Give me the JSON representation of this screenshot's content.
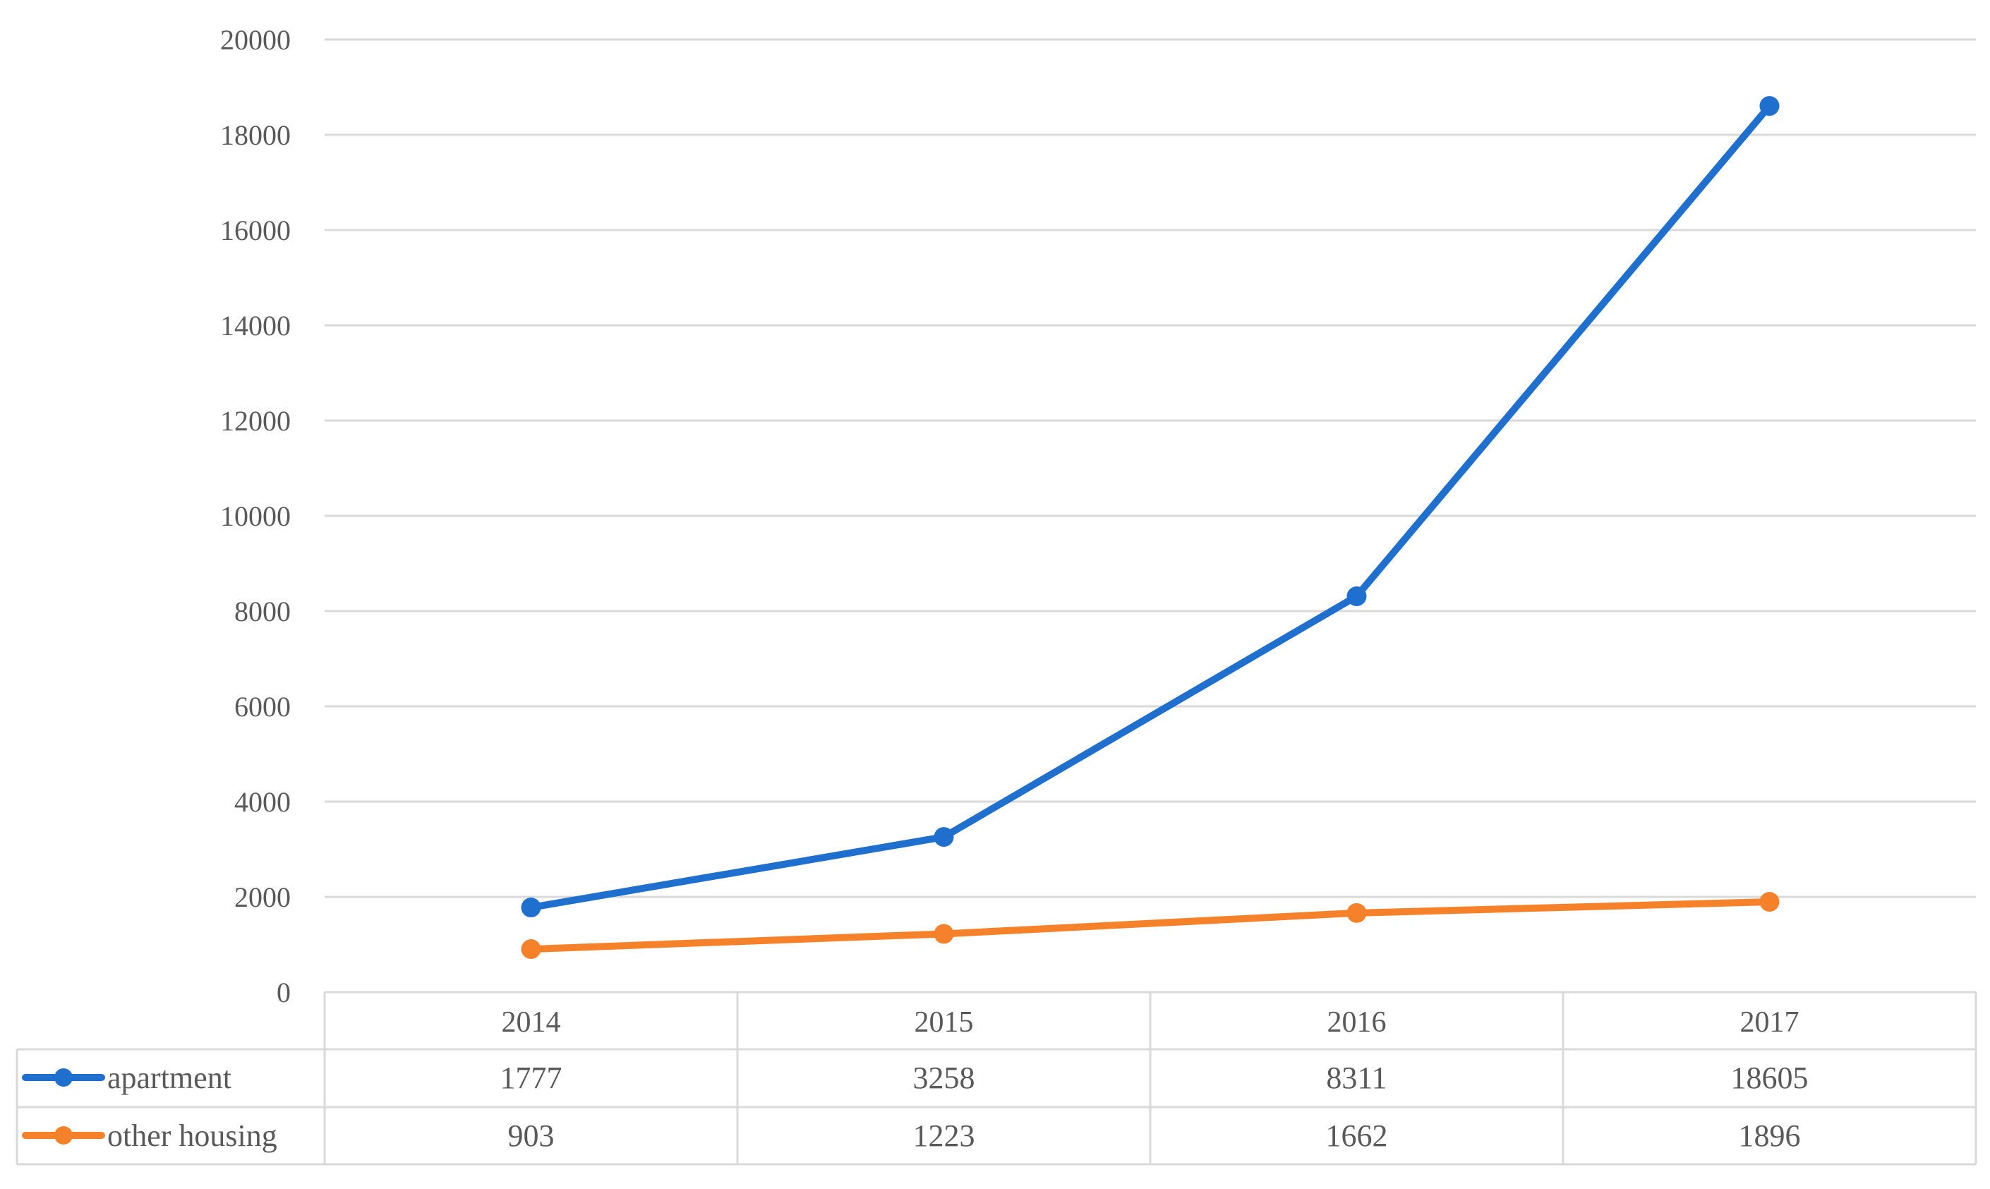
{
  "chart_data": {
    "type": "line",
    "categories": [
      "2014",
      "2015",
      "2016",
      "2017"
    ],
    "series": [
      {
        "name": "apartment",
        "values": [
          1777,
          3258,
          8311,
          18605
        ],
        "color": "#1f6fcf"
      },
      {
        "name": "other housing",
        "values": [
          903,
          1223,
          1662,
          1896
        ],
        "color": "#f5822a"
      }
    ],
    "yticks": [
      "0",
      "2000",
      "4000",
      "6000",
      "8000",
      "10000",
      "12000",
      "14000",
      "16000",
      "18000",
      "20000"
    ],
    "ylim": [
      0,
      20000
    ],
    "grid": true,
    "legend": "data table below plot",
    "data_table": {
      "rows": [
        {
          "label": "apartment",
          "cells": [
            "1777",
            "3258",
            "8311",
            "18605"
          ]
        },
        {
          "label": "other housing",
          "cells": [
            "903",
            "1223",
            "1662",
            "1896"
          ]
        }
      ]
    }
  }
}
